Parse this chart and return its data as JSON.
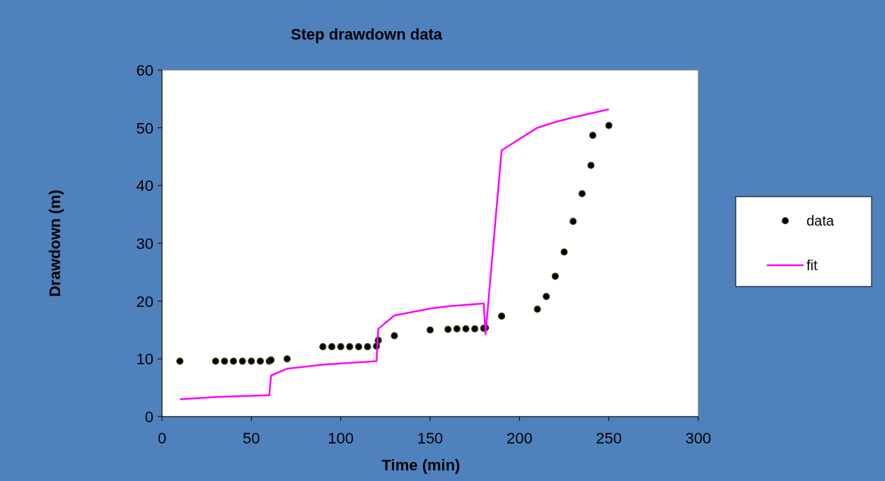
{
  "chart_data": {
    "type": "scatter",
    "title": "Step drawdown data",
    "xlabel": "Time (min)",
    "ylabel": "Drawdown (m)",
    "xlim": [
      0,
      300
    ],
    "xticks": [
      0,
      50,
      100,
      150,
      200,
      250,
      300
    ],
    "ylim": [
      0,
      60
    ],
    "yticks": [
      0,
      10,
      20,
      30,
      40,
      50,
      60
    ],
    "grid": false,
    "legend": "right",
    "series": [
      {
        "name": "data",
        "color": "#000000",
        "marker": "circle",
        "x": [
          10,
          30,
          35,
          40,
          45,
          50,
          55,
          60,
          61,
          70,
          90,
          95,
          100,
          105,
          110,
          115,
          120,
          121,
          130,
          150,
          160,
          165,
          170,
          175,
          180,
          181,
          190,
          210,
          215,
          220,
          225,
          230,
          235,
          240,
          241,
          250
        ],
        "values": [
          9.6,
          9.6,
          9.6,
          9.6,
          9.6,
          9.6,
          9.6,
          9.6,
          9.8,
          10.0,
          12.1,
          12.1,
          12.1,
          12.1,
          12.1,
          12.1,
          12.2,
          13.2,
          14.0,
          15.0,
          15.1,
          15.2,
          15.2,
          15.2,
          15.3,
          15.4,
          17.4,
          18.6,
          20.8,
          24.3,
          28.5,
          33.8,
          38.6,
          43.5,
          48.7,
          50.4
        ]
      },
      {
        "name": "fit",
        "type": "line",
        "color": "#ff00ff",
        "marker": "none",
        "line_style": "solid",
        "x": [
          10,
          30,
          50,
          60,
          61,
          70,
          90,
          120,
          121,
          130,
          150,
          160,
          180,
          181,
          190,
          210,
          220,
          230,
          240,
          250
        ],
        "values": [
          3.0,
          3.4,
          3.6,
          3.7,
          7.1,
          8.3,
          9.0,
          9.6,
          15.2,
          17.5,
          18.7,
          19.1,
          19.6,
          14.3,
          46.1,
          50.0,
          51.0,
          51.8,
          52.5,
          53.2
        ]
      }
    ]
  }
}
